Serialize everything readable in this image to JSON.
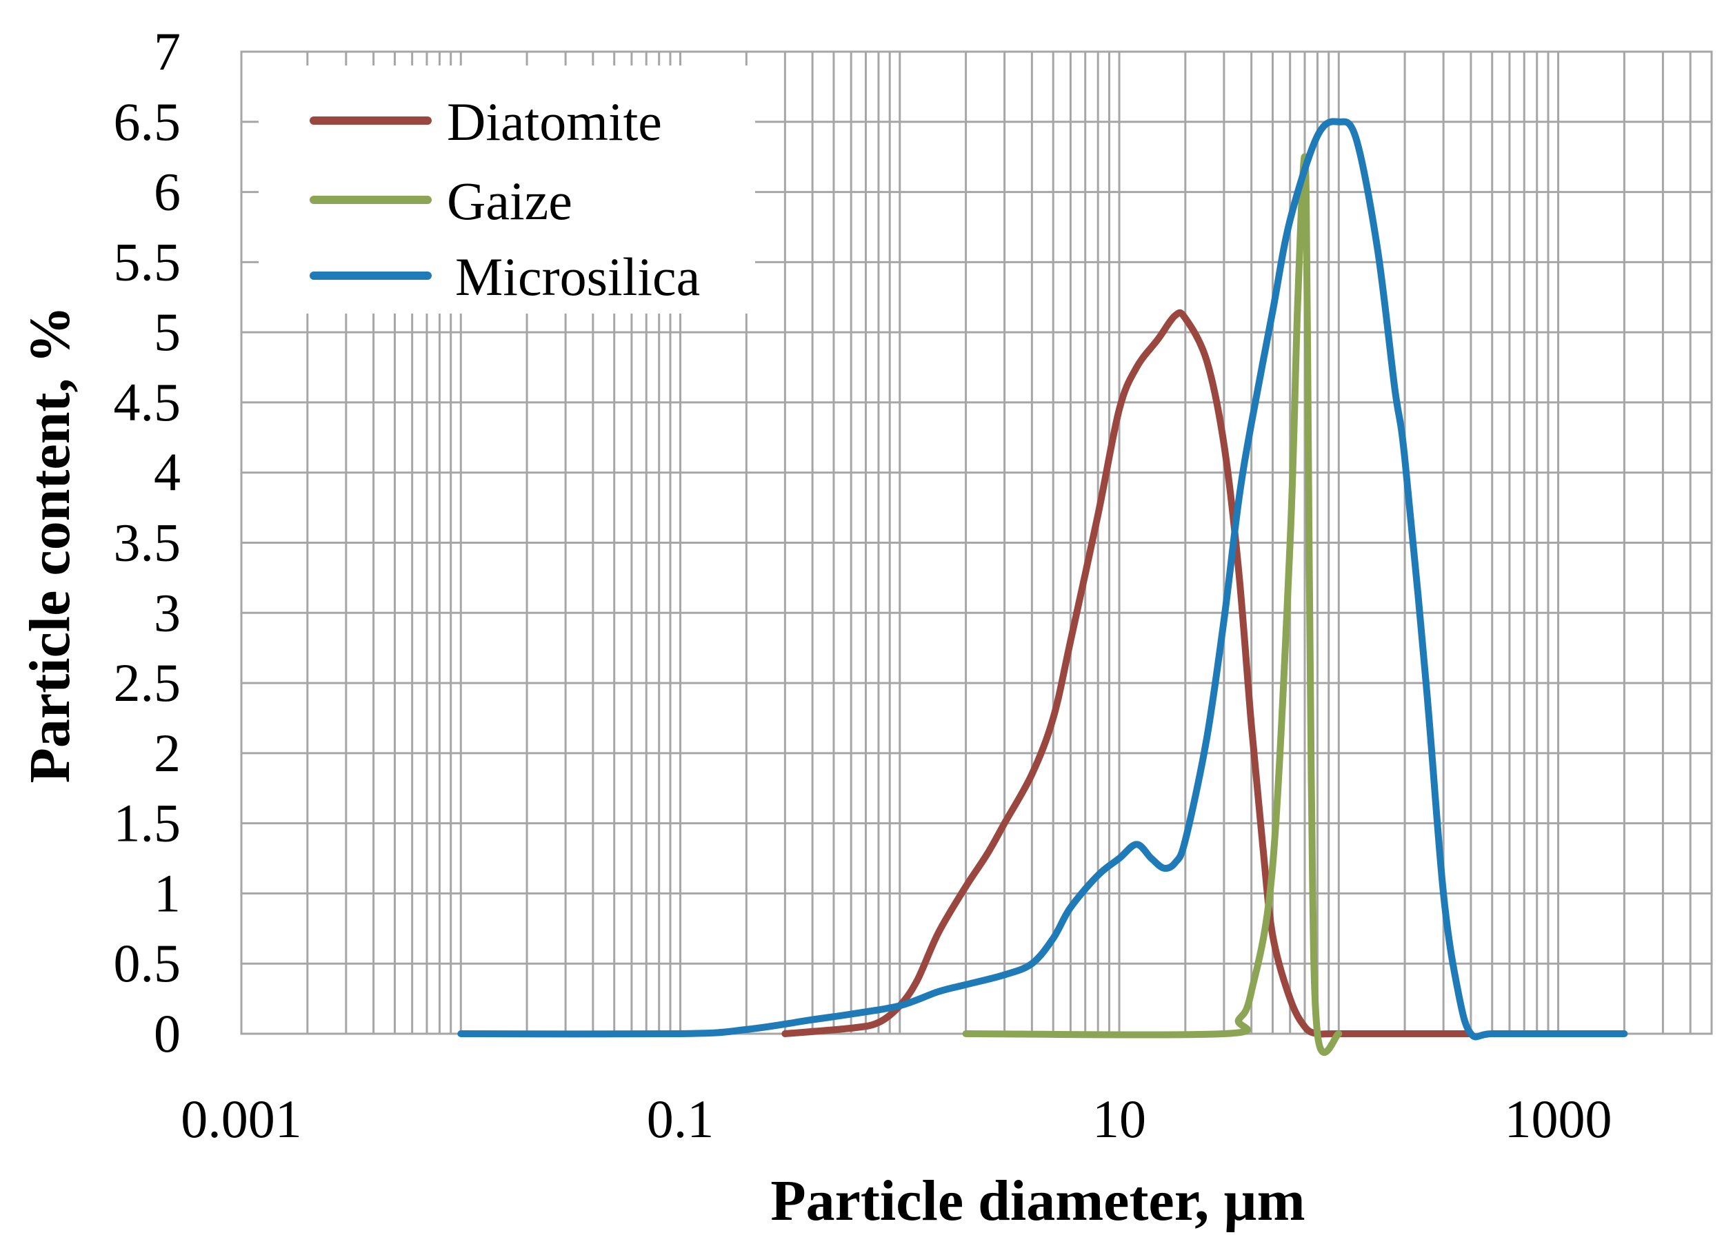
{
  "chart_data": {
    "type": "line",
    "title": "",
    "xlabel": "Particle diameter, µm",
    "ylabel": "Particle content, %",
    "xscale": "log",
    "xlim": [
      0.001,
      5000
    ],
    "ylim": [
      0,
      7
    ],
    "xticks": [
      0.001,
      0.1,
      10,
      1000
    ],
    "xtick_labels": [
      "0.001",
      "0.1",
      "10",
      "1000"
    ],
    "yticks": [
      0,
      0.5,
      1,
      1.5,
      2,
      2.5,
      3,
      3.5,
      4,
      4.5,
      5,
      5.5,
      6,
      6.5,
      7
    ],
    "ytick_labels": [
      "0",
      "0.5",
      "1",
      "1.5",
      "2",
      "2.5",
      "3",
      "3.5",
      "4",
      "4.5",
      "5",
      "5.5",
      "6",
      "6.5",
      "7"
    ],
    "grid": true,
    "legend_position": "top-left",
    "series": [
      {
        "name": "Diatomite",
        "color": "#9a4740",
        "x": [
          0.3,
          0.6,
          0.8,
          1.0,
          1.2,
          1.5,
          2.0,
          2.5,
          3.0,
          4.0,
          5.0,
          6.0,
          8.0,
          10,
          12,
          15,
          18,
          20,
          25,
          30,
          35,
          40,
          45,
          50,
          60,
          70,
          80,
          100,
          400
        ],
        "values": [
          0,
          0.04,
          0.08,
          0.2,
          0.38,
          0.72,
          1.05,
          1.28,
          1.5,
          1.85,
          2.25,
          2.8,
          3.7,
          4.45,
          4.75,
          4.95,
          5.12,
          5.1,
          4.8,
          4.2,
          3.3,
          2.2,
          1.35,
          0.7,
          0.25,
          0.05,
          0,
          0,
          0
        ]
      },
      {
        "name": "Gaize",
        "color": "#8ba555",
        "x": [
          2.0,
          30,
          35,
          40,
          50,
          60,
          65,
          70,
          72,
          75,
          80,
          100
        ],
        "values": [
          0,
          0,
          0.1,
          0.3,
          1.2,
          3.5,
          5.2,
          6.25,
          5.0,
          1.8,
          0,
          0
        ]
      },
      {
        "name": "Microsilica",
        "color": "#1f7ab8",
        "x": [
          0.01,
          0.1,
          0.2,
          0.4,
          0.6,
          1.0,
          1.5,
          2.0,
          3.0,
          4.0,
          5.0,
          6.0,
          8.0,
          10,
          12,
          14,
          16,
          18,
          20,
          25,
          30,
          35,
          40,
          50,
          60,
          80,
          100,
          120,
          150,
          180,
          200,
          250,
          300,
          350,
          400,
          500,
          1000,
          2000
        ],
        "values": [
          0,
          0,
          0.03,
          0.1,
          0.14,
          0.2,
          0.3,
          0.35,
          0.42,
          0.5,
          0.68,
          0.9,
          1.13,
          1.25,
          1.35,
          1.25,
          1.18,
          1.22,
          1.38,
          2.1,
          2.95,
          3.8,
          4.35,
          5.15,
          5.8,
          6.4,
          6.5,
          6.38,
          5.6,
          4.6,
          4.1,
          2.5,
          1.0,
          0.3,
          0,
          0,
          0,
          0
        ]
      }
    ]
  }
}
